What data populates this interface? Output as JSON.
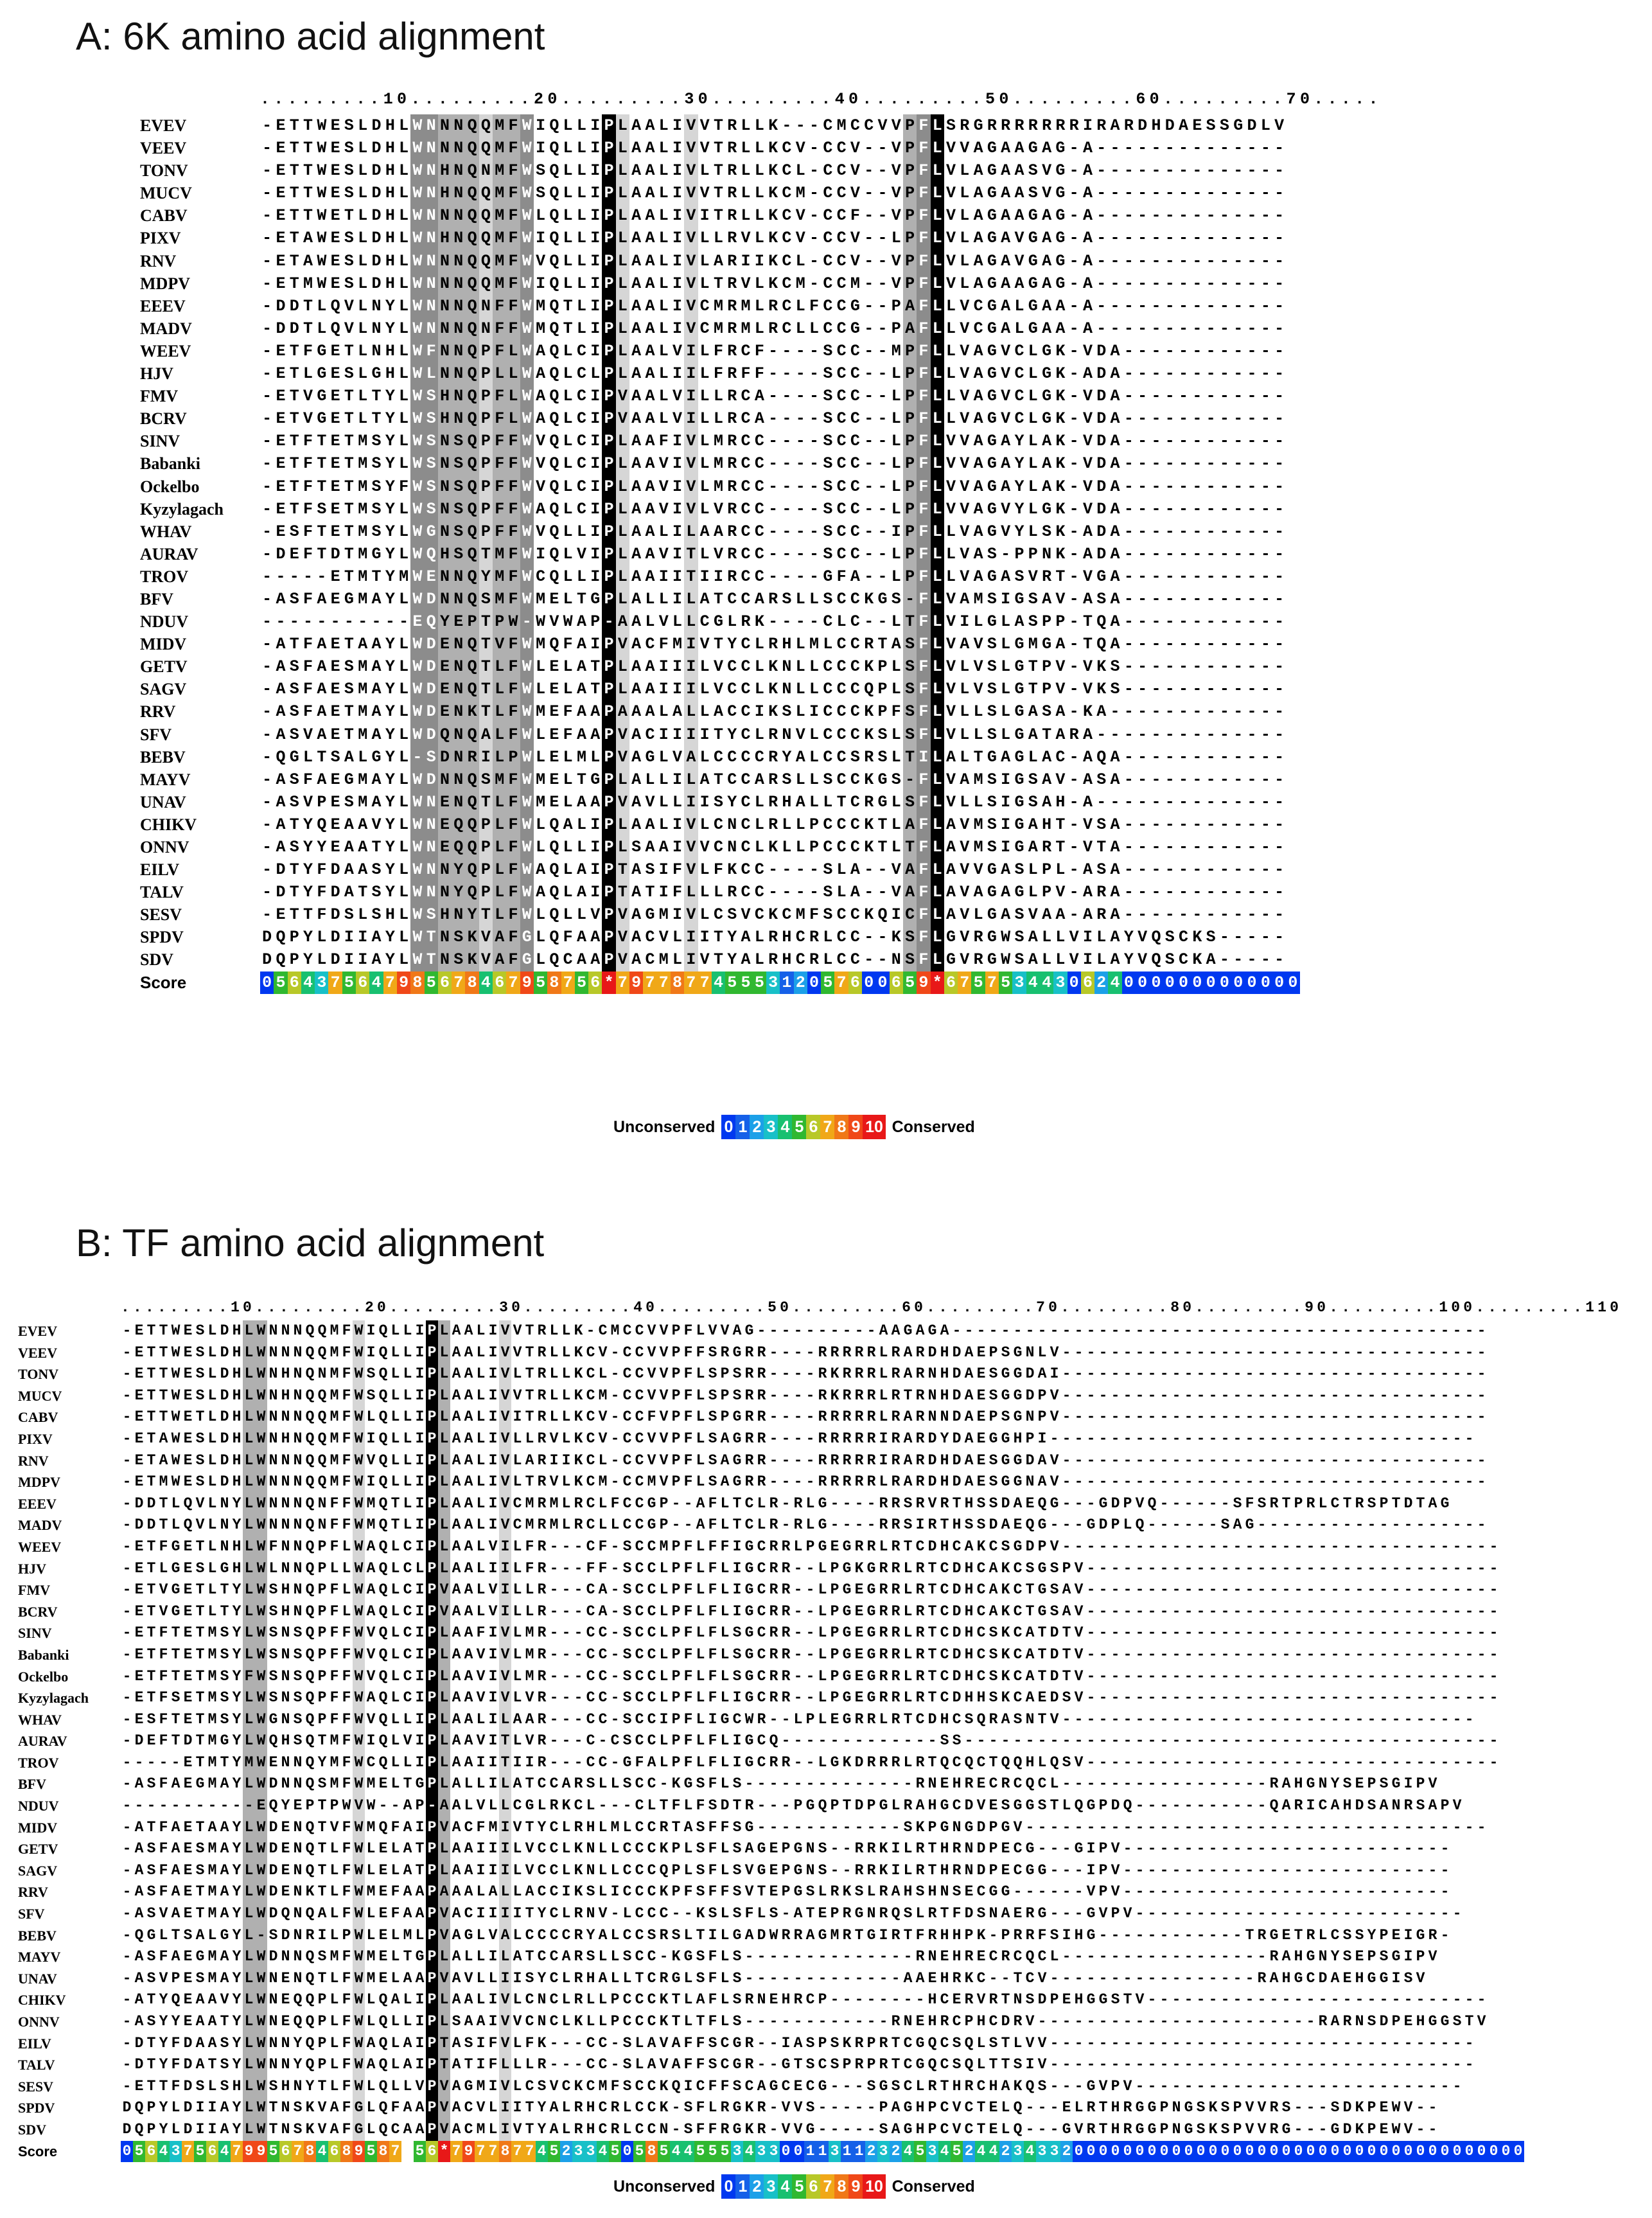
{
  "panelA": {
    "title": "A: 6K amino acid alignment",
    "ruler": ".........10.........20.........30.........40.........50.........60.........70.....",
    "names": [
      "EVEV",
      "VEEV",
      "TONV",
      "MUCV",
      "CABV",
      "PIXV",
      "RNV",
      "MDPV",
      "EEEV",
      "MADV",
      "WEEV",
      "HJV",
      "FMV",
      "BCRV",
      "SINV",
      "Babanki",
      "Ockelbo",
      "Kyzylagach",
      "WHAV",
      "AURAV",
      "TROV",
      "BFV",
      "NDUV",
      "MIDV",
      "GETV",
      "SAGV",
      "RRV",
      "SFV",
      "BEBV",
      "MAYV",
      "UNAV",
      "CHIKV",
      "ONNV",
      "EILV",
      "TALV",
      "SESV",
      "SPDV",
      "SDV"
    ],
    "seqs": [
      "-ETTWESLDHLWNNNQQMFWIQLLIPLAALIVVTRLLK---CMCCVVPFLSRGRRRRRRRIRARDHDAESSGDLV",
      "-ETTWESLDHLWNNNQQMFWIQLLIPLAALIVVTRLLKCV-CCV--VPFLVVAGAAGAG-A--------------",
      "-ETTWESLDHLWNHNQNMFWSQLLIPLAALIVLTRLLKCL-CCV--VPFLVLAGAASVG-A--------------",
      "-ETTWESLDHLWNHNQQMFWSQLLIPLAALIVVTRLLKCM-CCV--VPFLVLAGAASVG-A--------------",
      "-ETTWETLDHLWNNNQQMFWLQLLIPLAALIVITRLLKCV-CCF--VPFLVLAGAAGAG-A--------------",
      "-ETAWESLDHLWNHNQQMFWIQLLIPLAALIVLLRVLKCV-CCV--LPFLVLAGAVGAG-A--------------",
      "-ETAWESLDHLWNNNQQMFWVQLLIPLAALIVLARIIKCL-CCV--VPFLVLAGAVGAG-A--------------",
      "-ETMWESLDHLWNNNQQMFWIQLLIPLAALIVLTRVLKCM-CCM--VPFLVLAGAAGAG-A--------------",
      "-DDTLQVLNYLWNNNQNFFWMQTLIPLAALIVCMRMLRCLFCCG--PAFLLVCGALGAA-A--------------",
      "-DDTLQVLNYLWNNNQNFFWMQTLIPLAALIVCMRMLRCLLCCG--PAFLLVCGALGAA-A--------------",
      "-ETFGETLNHLWFNNQPFLWAQLCIPLAALVILFRCF----SCC--MPFLLVAGVCLGK-VDA------------",
      "-ETLGESLGHLWLNNQPLLWAQLCLPLAALIILFRFF----SCC--LPFLLVAGVCLGK-ADA------------",
      "-ETVGETLTYLWSHNQPFLWAQLCIPVAALVILLRCA----SCC--LPFLLVAGVCLGK-VDA------------",
      "-ETVGETLTYLWSHNQPFLWAQLCIPVAALVILLRCA----SCC--LPFLLVAGVCLGK-VDA------------",
      "-ETFTETMSYLWSNSQPFFWVQLCIPLAAFIVLMRCC----SCC--LPFLVVAGAYLAK-VDA------------",
      "-ETFTETMSYLWSNSQPFFWVQLCIPLAAVIVLMRCC----SCC--LPFLVVAGAYLAK-VDA------------",
      "-ETFTETMSYFWSNSQPFFWVQLCIPLAAVIVLMRCC----SCC--LPFLVVAGAYLAK-VDA------------",
      "-ETFSETMSYLWSNSQPFFWAQLCIPLAAVIVLVRCC----SCC--LPFLVVAGVYLGK-VDA------------",
      "-ESFTETMSYLWGNSQPFFWVQLLIPLAALILAARCC----SCC--IPFLLVAGVYLSK-ADA------------",
      "-DEFTDTMGYLWQHSQTMFWIQLVIPLAAVITLVRCC----SCC--LPFLLVAS-PPNK-ADA------------",
      "-----ETMTYMWENNQYMFWCQLLIPLAAIITIIRCC----GFA--LPFLLVAGASVRT-VGA------------",
      "-ASFAEGMAYLWDNNQSMFWMELTGPLALLILATCCARSLLSCCKGS-FLVAMSIGSAV-ASA------------",
      "-----------EQYEPTPW-WVWAP-AALVLLCGLRK----CLC--LTFLVILGLASPP-TQA------------",
      "-ATFAETAAYLWDENQTVFWMQFAIPVACFMIVTYCLRHLMLCCRTASFLVAVSLGMGA-TQA------------",
      "-ASFAESMAYLWDENQTLFWLELATPLAAIIILVCCLKNLLCCCKPLSFLVLVSLGTPV-VKS------------",
      "-ASFAESMAYLWDENQTLFWLELATPLAAIIILVCCLKNLLCCCQPLSFLVLVSLGTPV-VKS------------",
      "-ASFAETMAYLWDENKTLFWMEFAAPAAALALLACCIKSLICCCKPFSFLVLLSLGASA-KA-------------",
      "-ASVAETMAYLWDQNQALFWLEFAAPVACIIIITYCLRNVLCCCKSLSFLVLLSLGATARA--------------",
      "-QGLTSALGYL-SDNRILPWLELMLPVAGLVALCCCCRYALCCSRSLTILALTGAGLAC-AQA------------",
      "-ASFAEGMAYLWDNNQSMFWMELTGPLALLILATCCARSLLSCCKGS-FLVAMSIGSAV-ASA------------",
      "-ASVPESMAYLWNENQTLFWMELAAPVAVLLIISYCLRHALLTCRGLSFLVLLSIGSAH-A--------------",
      "-ATYQEAAVYLWNEQQPLFWLQALIPLAALIVLCNCLRLLPCCCKTLAFLAVMSIGAHT-VSA------------",
      "-ASYYEAATYLWNEQQPLFWLQLLIPLSAAIVVCNCLKLLPCCCKTLTFLAVMSIGART-VTA------------",
      "-DTYFDAASYLWNNYQPLFWAQLAIPTASIFVLFKCC----SLA--VAFLAVVGASLPL-ASA------------",
      "-DTYFDATSYLWNNYQPLFWAQLAIPTATIFLLLRCC----SLA--VAFLAVAGAGLPV-ARA------------",
      "-ETTFDSLSHLWSHNYTLFWLQLLVPVAGMIVLCSVCKCMFSCCKQICFLAVLGASVAA-ARA------------",
      "DQPYLDIIAYLWTNSKVAFGLQFAAPVACVLIITYALRHCRLCC--KSFLGVRGWSALLVILAYVQSCKS-----",
      "DQPYLDIIAYLWTNSKVAFGLQCAAPVACMLIVTYALRHCRLCC--NSFLGVRGWSALLVILAYVQSCKA-----"
    ],
    "score_label": "Score",
    "score": "0564375647985678467958756*79778774555312057600659*67575344306240000000000000",
    "legend": {
      "left": "Unconserved",
      "right": "Conserved",
      "levels": [
        "0",
        "1",
        "2",
        "3",
        "4",
        "5",
        "6",
        "7",
        "8",
        "9",
        "10"
      ]
    }
  },
  "panelB": {
    "title": "B: TF amino acid alignment",
    "ruler": ".........10.........20.........30.........40.........50.........60.........70.........80.........90.........100.........110",
    "names": [
      "EVEV",
      "VEEV",
      "TONV",
      "MUCV",
      "CABV",
      "PIXV",
      "RNV",
      "MDPV",
      "EEEV",
      "MADV",
      "WEEV",
      "HJV",
      "FMV",
      "BCRV",
      "SINV",
      "Babanki",
      "Ockelbo",
      "Kyzylagach",
      "WHAV",
      "AURAV",
      "TROV",
      "BFV",
      "NDUV",
      "MIDV",
      "GETV",
      "SAGV",
      "RRV",
      "SFV",
      "BEBV",
      "MAYV",
      "UNAV",
      "CHIKV",
      "ONNV",
      "EILV",
      "TALV",
      "SESV",
      "SPDV",
      "SDV"
    ],
    "seqs": [
      "-ETTWESLDHLWNNNQQMFWIQLLIPLAALIVVTRLLK-CMCCVVPFLVVAG----------AAGAGA--------------------------------------------",
      "-ETTWESLDHLWNNNQQMFWIQLLIPLAALIVVTRLLKCV-CCVVPFFSRGRR----RRRRRLRARDHDAEPSGNLV-----------------------------------",
      "-ETTWESLDHLWNHNQNMFWSQLLIPLAALIVLTRLLKCL-CCVVPFLSPSRR----RKRRRLRARNHDAESGGDAI-----------------------------------",
      "-ETTWESLDHLWNHNQQMFWSQLLIPLAALIVVTRLLKCM-CCVVPFLSPSRR----RKRRRLRTRNHDAESGGDPV-----------------------------------",
      "-ETTWETLDHLWNNNQQMFWLQLLIPLAALIVITRLLKCV-CCFVPFLSPGRR----RRRRRLRARNNDAEPSGNPV-----------------------------------",
      "-ETAWESLDHLWNHNQQMFWIQLLIPLAALIVLLRVLKCV-CCVVPFLSAGRR----RRRRRIRARDYDAEGGHPI-----------------------------------",
      "-ETAWESLDHLWNNNQQMFWVQLLIPLAALIVLARIIKCL-CCVVPFLSAGRR----RRRRRIRARDHDAESGGDAV-----------------------------------",
      "-ETMWESLDHLWNNNQQMFWIQLLIPLAALIVLTRVLKCM-CCMVPFLSAGRR----RRRRRLRARDHDAESGGNAV-----------------------------------",
      "-DDTLQVLNYLWNNNQNFFWMQTLIPLAALIVCMRMLRCLFCCGP--AFLTCLR-RLG----RRSRVRTHSSDAEQG---GDPVQ------SFSRTPRLCTRSPTDTAG",
      "-DDTLQVLNYLWNNNQNFFWMQTLIPLAALIVCMRMLRCLLCCGP--AFLTCLR-RLG----RRSIRTHSSDAEQG---GDPLQ------SAG-------------------",
      "-ETFGETLNHLWFNNQPFLWAQLCIPLAALVILFR---CF-SCCMPFLFFIGCRRLPGEGRRLRTCDHCAKCSGDPV------------------------------------",
      "-ETLGESLGHLWLNNQPLLWAQLCLPLAALIILFR---FF-SCCLPFLFLIGCRR--LPGKGRRLRTCDHCAKCSGSPV----------------------------------",
      "-ETVGETLTYLWSHNQPFLWAQLCIPVAALVILLR---CA-SCCLPFLFLIGCRR--LPGEGRRLRTCDHCAKCTGSAV----------------------------------",
      "-ETVGETLTYLWSHNQPFLWAQLCIPVAALVILLR---CA-SCCLPFLFLIGCRR--LPGEGRRLRTCDHCAKCTGSAV----------------------------------",
      "-ETFTETMSYLWSNSQPFFWVQLCIPLAAFIVLMR---CC-SCCLPFLFLSGCRR--LPGEGRRLRTCDHCSKCATDTV----------------------------------",
      "-ETFTETMSYLWSNSQPFFWVQLCIPLAAVIVLMR---CC-SCCLPFLFLSGCRR--LPGEGRRLRTCDHCSKCATDTV----------------------------------",
      "-ETFTETMSYFWSNSQPFFWVQLCIPLAAVIVLMR---CC-SCCLPFLFLSGCRR--LPGEGRRLRTCDHCSKCATDTV----------------------------------",
      "-ETFSETMSYLWSNSQPFFWAQLCIPLAAVIVLVR---CC-SCCLPFLFLIGCRR--LPGEGRRLRTCDHHSKCAEDSV----------------------------------",
      "-ESFTETMSYLWGNSQPFFWVQLLIPLAALILAAR---CC-SCCIPFLIGCWR--LPLEGRRLRTCDHCSQRASNTV----------------------------------",
      "-DEFTDTMGYLWQHSQTMFWIQLVIPLAAVITLVR---C-CSCCLPFLFLIGCQ-------------SS--------------------------------------------",
      "-----ETMTYMWENNQYMFWCQLLIPLAAIITIIR---CC-GFALPFLFLIGCRR--LGKDRRRLRTQCQCTQQHLQSV----------------------------------",
      "-ASFAEGMAYLWDNNQSMFWMELTGPLALLILATCCARSLLSCC-KGSFLS--------------RNEHRECRCQCL-----------------RAHGNYSEPSGIPV",
      "-----------EQYEPTPWVW--AP-AALVLLCGLRKCL---CLTFLFSDTR---PGQPTDPGLRAHGCDVESGGSTLQGPDQ-----------QARICAHDSANRSAPV",
      "-ATFAETAAYLWDENQTVFWMQFAIPVACFMIVTYCLRHLMLCCRTASFFSG------------SKPGNGDPGV--------------------------------------",
      "-ASFAESMAYLWDENQTLFWLELATPLAAIIILVCCLKNLLCCCKPLSFLSAGEPGNS--RRKILRTHRNDPECG---GIPV---------------------------",
      "-ASFAESMAYLWDENQTLFWLELATPLAAIIILVCCLKNLLCCCQPLSFLSVGEPGNS--RRKILRTHRNDPECGG---IPV---------------------------",
      "-ASFAETMAYLWDENKTLFWMEFAAPAAALALLACCIKSLICCCKPFSFFSVTEPGSLRKSLRAHSHNSECGG------VPV---------------------------",
      "-ASVAETMAYLWDQNQALFWLEFAAPVACIIIITYCLRNV-LCCC--KSLSFLS-ATEPRGNRQSLRTFDSNAERG---GVPV---------------------------",
      "-QGLTSALGYL-SDNRILPWLELMLPVAGLVALCCCCRYALCCSRSLTILGADWRRAGMRTGIRTFRHHPK-PRRFSIHG------------TRGETRLCSSYPEIGR-",
      "-ASFAEGMAYLWDNNQSMFWMELTGPLALLILATCCARSLLSCC-KGSFLS--------------RNEHRECRCQCL-----------------RAHGNYSEPSGIPV",
      "-ASVPESMAYLWNENQTLFWMELAAPVAVLLIISYCLRHALLTCRGLSFLS-------------AAEHRKC--TCV-----------------RAHGCDAEHGGISV",
      "-ATYQEAAVYLWNEQQPLFWLQALIPLAALIVLCNCLRLLPCCCKTLAFLSRNEHRCP--------HCERVRTNSDPEHGGSTV----------------------------",
      "-ASYYEAATYLWNEQQPLFWLQLLIPLSAAIVVCNCLKLLPCCCKTLTFLS------------RNEHRCPHCDRV-----------------------RARNSDPEHGGSTV",
      "-DTYFDAASYLWNNYQPLFWAQLAIPTASIFVLFK---CC-SLAVAFFSCGR--IASPSKRPRTCGQCSQLSTLVV-----------------------------------",
      "-DTYFDATSYLWNNYQPLFWAQLAIPTATIFLLLR---CC-SLAVAFFSCGR--GTSCSPRPRTCGQCSQLTTSIV-----------------------------------",
      "-ETTFDSLSHLWSHNYTLFWLQLLVPVAGMIVLCSVCKCMFSCCKQICFFSCAGCECG---SGSCLRTHRCHAKQS---GVPV---------------------------",
      "DQPYLDIIAYLWTNSKVAFGLQFAAPVACVLIITYALRHCRLCCK-SFLRGKR-VVS-----PAGHPCVCTELQ---ELRTHRGGPNGSKSPVVRS---SDKPEWV--",
      "DQPYLDIIAYLWTNSKVAFGLQCAAPVACMLIVTYALRHCRLCCN-SFFRGKR-VVG-----SAGHPCVCTELQ---GVRTHRGGPNGSKSPVVRG---GDKPEWV--"
    ],
    "score_label": "Score",
    "score": "05643756479956784689587 56*7977877452334505854455534330011311232453452442343320000000000000000000000000000000000000",
    "legend": {
      "left": "Unconserved",
      "right": "Conserved",
      "levels": [
        "0",
        "1",
        "2",
        "3",
        "4",
        "5",
        "6",
        "7",
        "8",
        "9",
        "10"
      ]
    }
  },
  "colors": {
    "score": {
      "0": "#0038f0",
      "1": "#1560e8",
      "2": "#1ca0e8",
      "3": "#18c0c8",
      "4": "#18c070",
      "5": "#30b830",
      "6": "#b8c828",
      "7": "#f0a818",
      "8": "#f07818",
      "9": "#f04818",
      "10": "#e81818",
      "*": "#e81818"
    },
    "shade_black": "#000000",
    "shade_dark": "#8c8c8c",
    "shade_mid": "#b0b0b0",
    "shade_light": "#d6d6d6"
  }
}
